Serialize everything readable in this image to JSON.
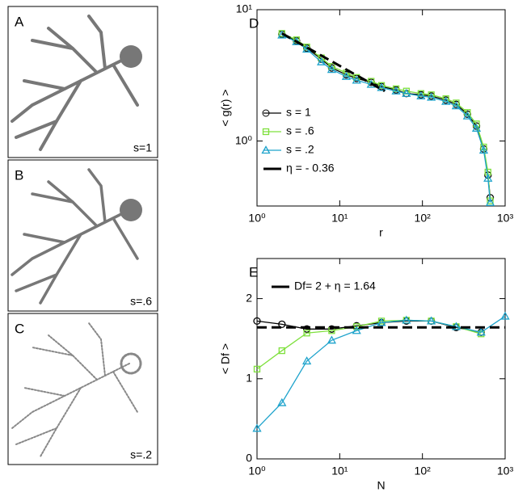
{
  "images": [
    {
      "label": "A",
      "caption": "s=1"
    },
    {
      "label": "B",
      "caption": "s=.6"
    },
    {
      "label": "C",
      "caption": "s=.2"
    }
  ],
  "chart_data": [
    {
      "type": "line",
      "label": "D",
      "xlabel": "r",
      "ylabel": "< g(r) >",
      "xlog": true,
      "ylog": true,
      "legend": "left",
      "xlim": [
        1,
        1000
      ],
      "ylim": [
        0.32,
        10
      ],
      "xticks": [
        {
          "value": 1,
          "label": "10⁰"
        },
        {
          "value": 10,
          "label": "10¹"
        },
        {
          "value": 100,
          "label": "10²"
        },
        {
          "value": 1000,
          "label": "10³"
        }
      ],
      "yticks": [
        {
          "value": 1,
          "label": "10⁰"
        },
        {
          "value": 10,
          "label": "10¹"
        }
      ],
      "x": [
        2,
        3,
        4,
        6,
        8,
        12,
        16,
        24,
        32,
        48,
        64,
        96,
        128,
        192,
        256,
        350,
        450,
        550,
        620,
        660
      ],
      "series": [
        {
          "name": "s = 1",
          "color": "#000000",
          "marker": "circle",
          "values": [
            6.5,
            5.8,
            5.1,
            4.2,
            3.6,
            3.2,
            3.0,
            2.8,
            2.6,
            2.45,
            2.3,
            2.25,
            2.2,
            2.05,
            1.9,
            1.6,
            1.3,
            0.87,
            0.55,
            0.37
          ]
        },
        {
          "name": "s = .6",
          "color": "#7ee03c",
          "marker": "square",
          "values": [
            6.6,
            5.9,
            5.2,
            4.3,
            3.7,
            3.3,
            3.05,
            2.85,
            2.65,
            2.5,
            2.4,
            2.3,
            2.25,
            2.1,
            1.95,
            1.65,
            1.35,
            0.9,
            0.58,
            0.35
          ]
        },
        {
          "name": "s = .2",
          "color": "#1ea3cc",
          "marker": "triangle",
          "values": [
            6.4,
            5.7,
            5.0,
            4.0,
            3.5,
            3.1,
            2.9,
            2.7,
            2.55,
            2.4,
            2.3,
            2.2,
            2.15,
            2.0,
            1.85,
            1.55,
            1.25,
            0.85,
            0.52,
            0.34
          ]
        },
        {
          "name": "η = - 0.36",
          "color": "#000000",
          "marker": "none",
          "dash": true,
          "x": [
            2,
            35
          ],
          "values": [
            6.6,
            2.4
          ]
        }
      ]
    },
    {
      "type": "line",
      "label": "E",
      "xlabel": "N",
      "ylabel": "< Df >",
      "xlog": true,
      "ylog": false,
      "legend": "top",
      "xlim": [
        1,
        1000
      ],
      "ylim": [
        0,
        2.5
      ],
      "xticks": [
        {
          "value": 1,
          "label": "10⁰"
        },
        {
          "value": 10,
          "label": "10¹"
        },
        {
          "value": 100,
          "label": "10²"
        },
        {
          "value": 1000,
          "label": "10³"
        }
      ],
      "yticks": [
        0,
        1,
        2
      ],
      "x": [
        1,
        2,
        4,
        8,
        16,
        32,
        64,
        128,
        256,
        512,
        1000
      ],
      "series": [
        {
          "name": "s = 1",
          "color": "#000000",
          "marker": "circle",
          "values": [
            1.72,
            1.68,
            1.62,
            1.62,
            1.66,
            1.7,
            1.72,
            1.72,
            1.64,
            1.58,
            null
          ]
        },
        {
          "name": "s = .6",
          "color": "#7ee03c",
          "marker": "square",
          "values": [
            1.12,
            1.35,
            1.57,
            1.6,
            1.65,
            1.72,
            1.73,
            1.72,
            1.65,
            1.56,
            null
          ]
        },
        {
          "name": "s = .2",
          "color": "#1ea3cc",
          "marker": "triangle",
          "values": [
            0.38,
            0.7,
            1.22,
            1.48,
            1.6,
            1.7,
            1.73,
            1.72,
            1.65,
            1.58,
            1.78
          ]
        },
        {
          "name": "Df= 2 + η = 1.64",
          "color": "#000000",
          "marker": "none",
          "dash": true,
          "x": [
            1,
            1000
          ],
          "values": [
            1.64,
            1.64
          ]
        }
      ]
    }
  ]
}
